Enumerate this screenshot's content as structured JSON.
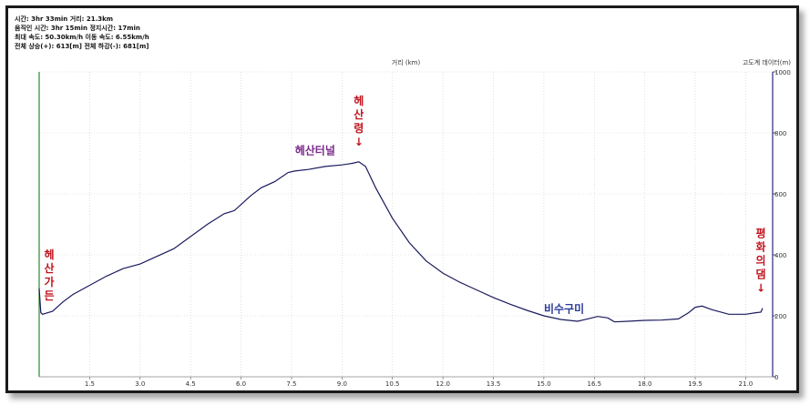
{
  "stats": {
    "line1": "시간: 3hr 33min  거리: 21.3km",
    "line2": "움직인 시간: 3hr 15min  정지시간: 17min",
    "line3": "최대 속도: 50.30km/h  이동 속도: 6.55km/h",
    "line4": "전체 상승(+): 613[m]  전체 하강(-): 681[m]"
  },
  "colors": {
    "line": "#1a1a5e",
    "left_axis": "#2a8a2a",
    "right_axis": "#2a2a7a",
    "red": "#c0141e",
    "purple": "#7a2a8a",
    "blue": "#2a3a9a",
    "grid": "#cccccc"
  },
  "chart_data": {
    "type": "line",
    "xlabel": "거리 (km)",
    "ylabel": "고도계 데이터(m)",
    "xlim": [
      0,
      21.8
    ],
    "ylim": [
      0,
      1000
    ],
    "x_ticks": [
      "1.5",
      "3.0",
      "4.5",
      "6.0",
      "7.5",
      "9.0",
      "10.5",
      "12.0",
      "13.5",
      "15.0",
      "16.5",
      "18.0",
      "19.5",
      "21.0"
    ],
    "y_ticks": [
      "0",
      "200",
      "400",
      "600",
      "800",
      "1000"
    ],
    "grid": true,
    "series": [
      {
        "x": [
          0,
          0.05,
          0.1,
          0.4,
          0.7,
          1.0,
          1.5,
          2.0,
          2.5,
          3.0,
          3.5,
          4.0,
          4.5,
          5.0,
          5.5,
          5.8,
          6.0,
          6.3,
          6.6,
          7.0,
          7.4,
          7.6,
          8.0,
          8.5,
          9.0,
          9.3,
          9.5,
          9.7,
          10.0,
          10.5,
          11.0,
          11.5,
          12.0,
          12.5,
          13.0,
          13.5,
          14.0,
          14.5,
          15.0,
          15.5,
          16.0,
          16.3,
          16.6,
          16.9,
          17.1,
          17.5,
          18.0,
          18.5,
          19.0,
          19.3,
          19.5,
          19.7,
          20.0,
          20.5,
          21.0,
          21.3,
          21.45,
          21.5
        ],
        "y": [
          290,
          210,
          205,
          215,
          245,
          270,
          300,
          330,
          355,
          370,
          395,
          420,
          460,
          500,
          535,
          545,
          565,
          595,
          620,
          640,
          670,
          675,
          680,
          690,
          695,
          700,
          705,
          690,
          620,
          520,
          440,
          380,
          340,
          310,
          285,
          260,
          238,
          218,
          200,
          188,
          182,
          190,
          198,
          193,
          180,
          182,
          185,
          186,
          190,
          210,
          228,
          232,
          220,
          205,
          205,
          210,
          212,
          225
        ]
      }
    ],
    "annotations": [
      {
        "text": "헤산가든",
        "x": 0.3,
        "y": 300,
        "color": "red",
        "vertical": true
      },
      {
        "text": "헤산터널",
        "x": 8.2,
        "y": 700,
        "color": "purple",
        "vertical": false
      },
      {
        "text": "헤산령",
        "x": 9.5,
        "y": 705,
        "color": "red",
        "vertical": true,
        "arrow": "↓"
      },
      {
        "text": "비수구미",
        "x": 15.6,
        "y": 180,
        "color": "blue",
        "vertical": false
      },
      {
        "text": "평화의댐",
        "x": 21.45,
        "y": 225,
        "color": "red",
        "vertical": true,
        "arrow": "↓"
      }
    ]
  }
}
